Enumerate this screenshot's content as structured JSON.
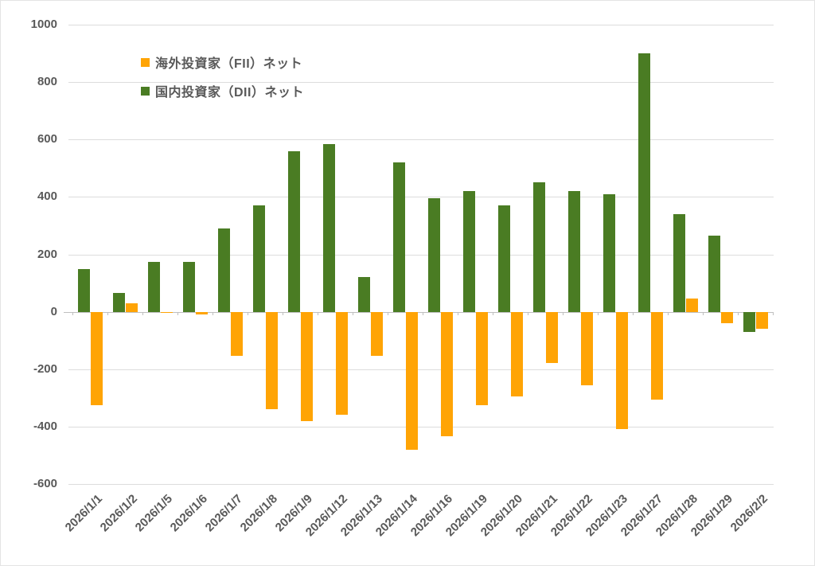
{
  "colors": {
    "fii": "#FFA405",
    "dii": "#4A7C23",
    "text": "#595959",
    "gridline": "#DCDCDC",
    "axis": "#BFBFBF",
    "background": "#FFFFFF"
  },
  "legend": {
    "items": [
      {
        "key": "fii",
        "label": "海外投資家（FII）ネット"
      },
      {
        "key": "dii",
        "label": "国内投資家（DII）ネット"
      }
    ]
  },
  "chart_data": {
    "type": "bar",
    "title": "",
    "xlabel": "",
    "ylabel": "",
    "grid": "horizontal",
    "legend_position": "top-left-inside",
    "ylim": [
      -600,
      1000
    ],
    "yticks": [
      1000,
      800,
      600,
      400,
      200,
      0,
      -200,
      -400,
      -600
    ],
    "categories": [
      "2026/1/1",
      "2026/1/2",
      "2026/1/5",
      "2026/1/6",
      "2026/1/7",
      "2026/1/8",
      "2026/1/9",
      "2026/1/12",
      "2026/1/13",
      "2026/1/14",
      "2026/1/16",
      "2026/1/19",
      "2026/1/20",
      "2026/1/21",
      "2026/1/22",
      "2026/1/23",
      "2026/1/27",
      "2026/1/28",
      "2026/1/29",
      "2026/2/2"
    ],
    "series": [
      {
        "name": "海外投資家（FII）ネット",
        "color_key": "fii",
        "bar_slot": 1,
        "values": [
          -325,
          30,
          -5,
          -10,
          -155,
          -340,
          -380,
          -360,
          -155,
          -480,
          -435,
          -325,
          -295,
          -180,
          -255,
          -410,
          -305,
          45,
          -40,
          -60
        ]
      },
      {
        "name": "国内投資家（DII）ネット",
        "color_key": "dii",
        "bar_slot": 0,
        "values": [
          150,
          65,
          175,
          175,
          290,
          370,
          560,
          585,
          120,
          520,
          395,
          420,
          370,
          450,
          420,
          410,
          900,
          340,
          265,
          -70
        ]
      }
    ]
  }
}
